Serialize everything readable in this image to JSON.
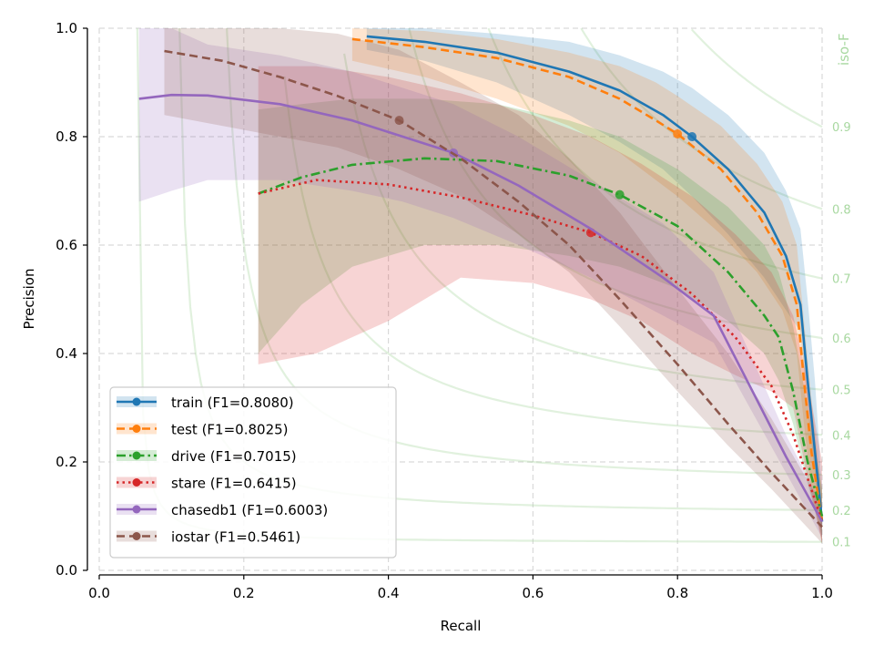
{
  "chart_data": {
    "type": "line",
    "title": "",
    "xlabel": "Recall",
    "ylabel": "Precision",
    "xlim": [
      0.0,
      1.0
    ],
    "ylim": [
      0.0,
      1.0
    ],
    "xticks": [
      "0.0",
      "0.2",
      "0.4",
      "0.6",
      "0.8",
      "1.0"
    ],
    "yticks": [
      "0.0",
      "0.2",
      "0.4",
      "0.6",
      "0.8",
      "1.0"
    ],
    "grid": true,
    "legend_position": "lower-left",
    "iso_f": {
      "title": "iso-F",
      "color": "#a8d8a0",
      "levels": [
        0.1,
        0.2,
        0.3,
        0.4,
        0.5,
        0.6,
        0.7,
        0.8,
        0.9
      ],
      "labels": [
        "0.1",
        "0.2",
        "0.3",
        "0.4",
        "0.5",
        "0.6",
        "0.7",
        "0.8",
        "0.9"
      ]
    },
    "series": [
      {
        "name": "train",
        "label": "train (F1=0.8080)",
        "f1": 0.808,
        "color": "#1f77b4",
        "style": "solid",
        "marker": [
          0.82,
          0.8
        ],
        "x": [
          0.37,
          0.45,
          0.55,
          0.65,
          0.72,
          0.78,
          0.82,
          0.87,
          0.92,
          0.95,
          0.97,
          0.98,
          0.99,
          1.0
        ],
        "y": [
          0.985,
          0.975,
          0.955,
          0.92,
          0.885,
          0.84,
          0.8,
          0.74,
          0.66,
          0.58,
          0.49,
          0.35,
          0.22,
          0.09
        ],
        "band_upper": [
          1.0,
          1.0,
          0.99,
          0.975,
          0.95,
          0.92,
          0.89,
          0.84,
          0.77,
          0.7,
          0.63,
          0.5,
          0.35,
          0.15
        ],
        "band_lower": [
          0.96,
          0.94,
          0.9,
          0.84,
          0.79,
          0.74,
          0.69,
          0.62,
          0.54,
          0.48,
          0.44,
          0.3,
          0.18,
          0.05
        ]
      },
      {
        "name": "test",
        "label": "test (F1=0.8025)",
        "f1": 0.8025,
        "color": "#ff7f0e",
        "style": "dashed",
        "marker": [
          0.8,
          0.805
        ],
        "x": [
          0.35,
          0.45,
          0.55,
          0.65,
          0.72,
          0.77,
          0.8,
          0.86,
          0.91,
          0.945,
          0.965,
          0.975,
          0.985,
          1.0
        ],
        "y": [
          0.98,
          0.965,
          0.945,
          0.91,
          0.87,
          0.83,
          0.805,
          0.74,
          0.66,
          0.58,
          0.49,
          0.35,
          0.22,
          0.09
        ],
        "band_upper": [
          1.0,
          0.995,
          0.98,
          0.955,
          0.93,
          0.9,
          0.875,
          0.82,
          0.75,
          0.68,
          0.6,
          0.46,
          0.32,
          0.14
        ],
        "band_lower": [
          0.94,
          0.91,
          0.87,
          0.82,
          0.77,
          0.72,
          0.69,
          0.62,
          0.55,
          0.48,
          0.4,
          0.27,
          0.15,
          0.05
        ]
      },
      {
        "name": "drive",
        "label": "drive (F1=0.7015)",
        "f1": 0.7015,
        "color": "#2ca02c",
        "style": "dashdot",
        "marker": [
          0.72,
          0.693
        ],
        "x": [
          0.22,
          0.28,
          0.35,
          0.45,
          0.55,
          0.65,
          0.72,
          0.8,
          0.87,
          0.92,
          0.94,
          0.96,
          0.98,
          1.0
        ],
        "y": [
          0.695,
          0.725,
          0.748,
          0.76,
          0.755,
          0.728,
          0.693,
          0.635,
          0.55,
          0.47,
          0.43,
          0.33,
          0.2,
          0.1
        ],
        "band_upper": [
          0.85,
          0.86,
          0.87,
          0.87,
          0.86,
          0.83,
          0.8,
          0.74,
          0.67,
          0.6,
          0.55,
          0.45,
          0.3,
          0.15
        ],
        "band_lower": [
          0.4,
          0.49,
          0.56,
          0.6,
          0.6,
          0.58,
          0.56,
          0.52,
          0.46,
          0.4,
          0.35,
          0.27,
          0.16,
          0.06
        ]
      },
      {
        "name": "stare",
        "label": "stare (F1=0.6415)",
        "f1": 0.6415,
        "color": "#d62728",
        "style": "dotted",
        "marker": [
          0.68,
          0.623
        ],
        "x": [
          0.22,
          0.3,
          0.4,
          0.5,
          0.6,
          0.68,
          0.75,
          0.82,
          0.88,
          0.93,
          0.96,
          0.98,
          1.0
        ],
        "y": [
          0.695,
          0.72,
          0.712,
          0.688,
          0.655,
          0.623,
          0.58,
          0.51,
          0.43,
          0.34,
          0.25,
          0.17,
          0.09
        ],
        "band_upper": [
          0.93,
          0.93,
          0.91,
          0.88,
          0.84,
          0.8,
          0.75,
          0.69,
          0.62,
          0.55,
          0.47,
          0.35,
          0.2
        ],
        "band_lower": [
          0.38,
          0.4,
          0.46,
          0.54,
          0.53,
          0.5,
          0.46,
          0.4,
          0.36,
          0.33,
          0.3,
          0.17,
          0.05
        ]
      },
      {
        "name": "chasedb1",
        "label": "chasedb1 (F1=0.6003)",
        "f1": 0.6003,
        "color": "#9467bd",
        "style": "solid",
        "marker": [
          0.49,
          0.77
        ],
        "x": [
          0.055,
          0.1,
          0.15,
          0.25,
          0.35,
          0.42,
          0.49,
          0.58,
          0.68,
          0.78,
          0.85,
          0.9,
          0.95,
          1.0
        ],
        "y": [
          0.87,
          0.877,
          0.876,
          0.86,
          0.83,
          0.8,
          0.77,
          0.71,
          0.63,
          0.54,
          0.47,
          0.34,
          0.21,
          0.09
        ],
        "band_upper": [
          1.0,
          1.0,
          0.97,
          0.95,
          0.92,
          0.89,
          0.86,
          0.8,
          0.72,
          0.64,
          0.55,
          0.4,
          0.25,
          0.12
        ],
        "band_lower": [
          0.68,
          0.7,
          0.72,
          0.72,
          0.7,
          0.68,
          0.65,
          0.6,
          0.54,
          0.47,
          0.42,
          0.3,
          0.18,
          0.06
        ]
      },
      {
        "name": "iostar",
        "label": "iostar (F1=0.5461)",
        "f1": 0.5461,
        "color": "#8c564b",
        "style": "dashed",
        "marker": [
          0.415,
          0.83
        ],
        "x": [
          0.09,
          0.17,
          0.25,
          0.33,
          0.415,
          0.5,
          0.58,
          0.65,
          0.72,
          0.8,
          0.87,
          0.93,
          1.0
        ],
        "y": [
          0.958,
          0.94,
          0.91,
          0.875,
          0.83,
          0.76,
          0.68,
          0.6,
          0.5,
          0.38,
          0.27,
          0.18,
          0.08
        ],
        "band_upper": [
          1.0,
          1.0,
          1.0,
          0.99,
          0.96,
          0.9,
          0.84,
          0.76,
          0.66,
          0.52,
          0.4,
          0.28,
          0.12
        ],
        "band_lower": [
          0.84,
          0.82,
          0.8,
          0.78,
          0.74,
          0.69,
          0.62,
          0.55,
          0.45,
          0.33,
          0.23,
          0.15,
          0.05
        ]
      }
    ]
  }
}
